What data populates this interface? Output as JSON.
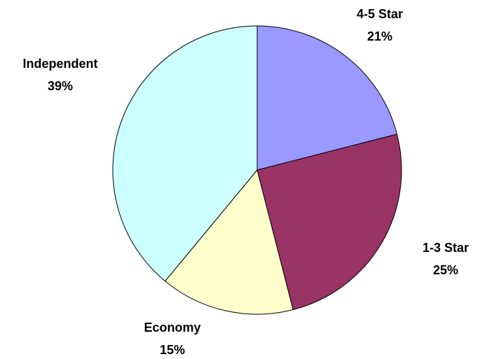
{
  "chart_data": {
    "type": "pie",
    "title": "",
    "slices": [
      {
        "label": "4-5 Star",
        "value": 21,
        "display": "21%",
        "color": "#9999ff"
      },
      {
        "label": "1-3 Star",
        "value": 25,
        "display": "25%",
        "color": "#993366"
      },
      {
        "label": "Economy",
        "value": 15,
        "display": "15%",
        "color": "#ffffcc"
      },
      {
        "label": "Independent",
        "value": 39,
        "display": "39%",
        "color": "#ccffff"
      }
    ],
    "start": "12 o'clock",
    "direction": "clockwise",
    "legend": "none",
    "data_labels": "outside, category name and percentage"
  }
}
